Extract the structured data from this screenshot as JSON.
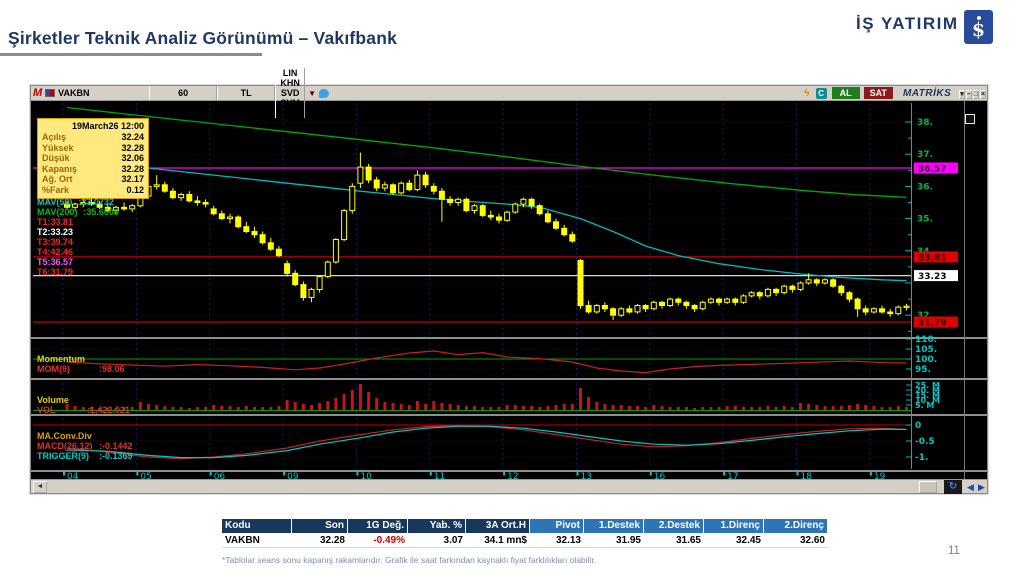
{
  "slide": {
    "title": "Şirketler Teknik Analiz Görünümü – Vakıfbank",
    "logo_text": "İŞ YATIRIM",
    "logo_symbol": "$",
    "page_number": "11",
    "footnote": "*Tablolar seans sonu kapanış rakamlarıdır. Grafik ile saat farkından kaynaklı fiyat farklılıkları olabilir."
  },
  "terminal": {
    "toolbar": {
      "m_logo": "M",
      "symbol": "VAKBN",
      "period": "60",
      "currency": "TL",
      "buttons": [
        "LIN",
        "KHN",
        "SVD",
        "SYM",
        "TMP"
      ],
      "caret": "▼",
      "bolt": "ϟ",
      "c_icon": "C",
      "al_label": "AL",
      "sat_label": "SAT",
      "brand": "MATRİKS",
      "window_buttons": [
        {
          "glyph": "▾",
          "name": "dropdown"
        },
        {
          "glyph": "–",
          "name": "minimize"
        },
        {
          "glyph": "□",
          "name": "maximize"
        },
        {
          "glyph": "×",
          "name": "close"
        }
      ]
    },
    "info_box": {
      "timestamp": "19March26 12:00",
      "rows": [
        {
          "label": "Açılış",
          "value": "32.24"
        },
        {
          "label": "Yüksek",
          "value": "32.28"
        },
        {
          "label": "Düşük",
          "value": "32.06"
        },
        {
          "label": "Kapanış",
          "value": "32.28"
        },
        {
          "label": "Ağ. Ort",
          "value": "32.17"
        },
        {
          "label": "%Fark",
          "value": "0.12"
        }
      ]
    },
    "legend": [
      {
        "label": "MAV(50)",
        "value": ":33.0732",
        "color": "#00cccc"
      },
      {
        "label": "MAV(200)",
        "value": ":35.6608",
        "color": "#00c000"
      },
      {
        "label": "T1:33.81",
        "value": "",
        "color": "#ff2020"
      },
      {
        "label": "T2:33.23",
        "value": "",
        "color": "#ffffff"
      },
      {
        "label": "T3:39.74",
        "value": "",
        "color": "#ff2020"
      },
      {
        "label": "T4:42.46",
        "value": "",
        "color": "#ff2020"
      },
      {
        "label": "T5:36.57",
        "value": "",
        "color": "#ff50ff"
      },
      {
        "label": "T6:31.79",
        "value": "",
        "color": "#ff2020"
      }
    ],
    "momentum": {
      "title": "Momentum",
      "series_label": "MOM(9)",
      "value": ":98.06"
    },
    "volume": {
      "title": "Volume",
      "series_label": "VOL",
      "value": ":1,422,021"
    },
    "macd": {
      "title": "MA.Conv.Div",
      "lines": [
        {
          "label": "MACD(26,12)",
          "value": ":-0.1442",
          "color": "#e03030"
        },
        {
          "label": "TRIGGER(9)",
          "value": ":-0.1369",
          "color": "#00cccc"
        }
      ]
    },
    "scrollbar": {
      "left_arrow": "◄",
      "refresh_icon": "↻",
      "back_icon": "◀",
      "fwd_icon": "▶"
    }
  },
  "chart_data": {
    "type": "candlestick",
    "symbol": "VAKBN",
    "interval_minutes": 60,
    "ylim": [
      31.3,
      38.6
    ],
    "dates": [
      "04",
      "05",
      "06",
      "09",
      "10",
      "11",
      "12",
      "13",
      "16",
      "17",
      "18",
      "19"
    ],
    "bars_per_day": 9,
    "candles": [
      [
        35.45,
        35.55,
        35.3,
        35.35
      ],
      [
        35.35,
        35.5,
        35.25,
        35.45
      ],
      [
        35.45,
        35.6,
        35.35,
        35.5
      ],
      [
        35.5,
        35.65,
        35.4,
        35.45
      ],
      [
        35.45,
        35.55,
        35.3,
        35.35
      ],
      [
        35.35,
        35.45,
        35.2,
        35.25
      ],
      [
        35.25,
        35.4,
        35.15,
        35.35
      ],
      [
        35.35,
        35.5,
        35.25,
        35.3
      ],
      [
        35.3,
        35.45,
        35.2,
        35.4
      ],
      [
        35.4,
        35.75,
        35.35,
        35.7
      ],
      [
        35.7,
        36.1,
        35.65,
        36.0
      ],
      [
        36.0,
        36.35,
        35.9,
        36.05
      ],
      [
        36.05,
        36.15,
        35.8,
        35.85
      ],
      [
        35.85,
        35.95,
        35.6,
        35.65
      ],
      [
        35.65,
        35.8,
        35.55,
        35.75
      ],
      [
        35.75,
        35.85,
        35.5,
        35.55
      ],
      [
        35.55,
        35.7,
        35.4,
        35.5
      ],
      [
        35.5,
        35.6,
        35.35,
        35.45
      ],
      [
        35.3,
        35.4,
        35.1,
        35.15
      ],
      [
        35.15,
        35.25,
        34.95,
        35.0
      ],
      [
        35.0,
        35.15,
        34.85,
        35.05
      ],
      [
        35.05,
        35.1,
        34.7,
        34.75
      ],
      [
        34.75,
        34.9,
        34.55,
        34.6
      ],
      [
        34.6,
        34.75,
        34.4,
        34.5
      ],
      [
        34.5,
        34.6,
        34.2,
        34.25
      ],
      [
        34.25,
        34.4,
        34.0,
        34.05
      ],
      [
        34.05,
        34.15,
        33.8,
        33.85
      ],
      [
        33.6,
        33.7,
        33.2,
        33.3
      ],
      [
        33.3,
        33.4,
        32.9,
        32.95
      ],
      [
        32.95,
        33.05,
        32.45,
        32.55
      ],
      [
        32.55,
        32.85,
        32.4,
        32.8
      ],
      [
        32.8,
        33.25,
        32.7,
        33.2
      ],
      [
        33.2,
        33.7,
        33.15,
        33.65
      ],
      [
        33.65,
        34.4,
        33.6,
        34.35
      ],
      [
        34.35,
        35.3,
        34.3,
        35.25
      ],
      [
        35.25,
        36.1,
        35.15,
        36.0
      ],
      [
        36.1,
        37.05,
        35.95,
        36.6
      ],
      [
        36.6,
        36.7,
        36.1,
        36.2
      ],
      [
        36.2,
        36.3,
        35.85,
        35.95
      ],
      [
        35.95,
        36.15,
        35.85,
        36.05
      ],
      [
        36.05,
        36.1,
        35.75,
        35.8
      ],
      [
        35.8,
        36.15,
        35.75,
        36.1
      ],
      [
        36.1,
        36.2,
        35.85,
        35.9
      ],
      [
        35.9,
        36.5,
        35.85,
        36.35
      ],
      [
        36.35,
        36.45,
        35.95,
        36.05
      ],
      [
        36.0,
        36.1,
        35.75,
        35.85
      ],
      [
        35.85,
        35.95,
        34.9,
        35.6
      ],
      [
        35.6,
        35.7,
        35.4,
        35.5
      ],
      [
        35.5,
        35.65,
        35.4,
        35.6
      ],
      [
        35.6,
        35.65,
        35.2,
        35.25
      ],
      [
        35.25,
        35.45,
        35.15,
        35.4
      ],
      [
        35.4,
        35.45,
        35.05,
        35.1
      ],
      [
        35.1,
        35.25,
        34.95,
        35.05
      ],
      [
        35.05,
        35.15,
        34.85,
        34.95
      ],
      [
        34.95,
        35.25,
        34.9,
        35.2
      ],
      [
        35.2,
        35.5,
        35.15,
        35.45
      ],
      [
        35.45,
        35.65,
        35.35,
        35.6
      ],
      [
        35.6,
        35.65,
        35.3,
        35.4
      ],
      [
        35.4,
        35.45,
        35.1,
        35.15
      ],
      [
        35.15,
        35.25,
        34.85,
        34.9
      ],
      [
        34.9,
        35.0,
        34.65,
        34.7
      ],
      [
        34.7,
        34.8,
        34.45,
        34.5
      ],
      [
        34.5,
        34.6,
        34.25,
        34.3
      ],
      [
        33.7,
        33.75,
        32.2,
        32.3
      ],
      [
        32.3,
        32.45,
        32.05,
        32.1
      ],
      [
        32.1,
        32.35,
        32.05,
        32.3
      ],
      [
        32.3,
        32.4,
        32.1,
        32.2
      ],
      [
        32.2,
        32.25,
        31.85,
        32.0
      ],
      [
        32.0,
        32.25,
        31.95,
        32.2
      ],
      [
        32.2,
        32.3,
        32.05,
        32.1
      ],
      [
        32.1,
        32.35,
        32.05,
        32.3
      ],
      [
        32.3,
        32.35,
        32.1,
        32.2
      ],
      [
        32.2,
        32.45,
        32.15,
        32.4
      ],
      [
        32.4,
        32.45,
        32.2,
        32.3
      ],
      [
        32.3,
        32.55,
        32.25,
        32.5
      ],
      [
        32.5,
        32.55,
        32.3,
        32.4
      ],
      [
        32.4,
        32.45,
        32.2,
        32.3
      ],
      [
        32.3,
        32.35,
        32.1,
        32.2
      ],
      [
        32.2,
        32.45,
        32.15,
        32.4
      ],
      [
        32.4,
        32.55,
        32.35,
        32.5
      ],
      [
        32.5,
        32.55,
        32.3,
        32.4
      ],
      [
        32.4,
        32.55,
        32.35,
        32.5
      ],
      [
        32.5,
        32.55,
        32.3,
        32.4
      ],
      [
        32.4,
        32.65,
        32.35,
        32.6
      ],
      [
        32.6,
        32.75,
        32.55,
        32.7
      ],
      [
        32.7,
        32.75,
        32.5,
        32.6
      ],
      [
        32.6,
        32.85,
        32.55,
        32.8
      ],
      [
        32.8,
        32.85,
        32.6,
        32.7
      ],
      [
        32.7,
        32.95,
        32.65,
        32.9
      ],
      [
        32.9,
        32.95,
        32.7,
        32.8
      ],
      [
        32.8,
        33.05,
        32.75,
        33.0
      ],
      [
        33.0,
        33.3,
        32.95,
        33.1
      ],
      [
        33.1,
        33.15,
        32.9,
        33.0
      ],
      [
        33.0,
        33.15,
        32.95,
        33.1
      ],
      [
        33.1,
        33.15,
        32.85,
        32.9
      ],
      [
        32.9,
        32.95,
        32.6,
        32.7
      ],
      [
        32.7,
        32.75,
        32.4,
        32.5
      ],
      [
        32.5,
        32.55,
        31.95,
        32.2
      ],
      [
        32.2,
        32.3,
        32.0,
        32.1
      ],
      [
        32.1,
        32.25,
        32.05,
        32.2
      ],
      [
        32.2,
        32.3,
        32.05,
        32.1
      ],
      [
        32.1,
        32.2,
        31.95,
        32.05
      ],
      [
        32.05,
        32.3,
        32.0,
        32.25
      ],
      [
        32.25,
        32.35,
        32.15,
        32.28
      ]
    ],
    "volumes_m": [
      6,
      4,
      3,
      3,
      2,
      2,
      2,
      3,
      3,
      8,
      6,
      5,
      4,
      3,
      3,
      2,
      3,
      3,
      5,
      4,
      4,
      3,
      4,
      3,
      3,
      3,
      4,
      10,
      8,
      6,
      5,
      7,
      9,
      12,
      16,
      20,
      26,
      18,
      12,
      8,
      7,
      6,
      5,
      9,
      6,
      9,
      7,
      6,
      5,
      4,
      4,
      3,
      3,
      3,
      5,
      5,
      4,
      4,
      3,
      4,
      5,
      6,
      6,
      22,
      13,
      8,
      6,
      5,
      5,
      4,
      4,
      3,
      5,
      4,
      3,
      3,
      3,
      2,
      3,
      3,
      3,
      4,
      4,
      3,
      3,
      3,
      4,
      3,
      4,
      3,
      7,
      6,
      5,
      4,
      4,
      4,
      5,
      6,
      5,
      4,
      3,
      3,
      4,
      3
    ],
    "ma50": [
      [
        0,
        36.85
      ],
      [
        9,
        36.6
      ],
      [
        18,
        36.35
      ],
      [
        27,
        36.1
      ],
      [
        36,
        35.85
      ],
      [
        45,
        35.62
      ],
      [
        50,
        35.52
      ],
      [
        54,
        35.45
      ],
      [
        58,
        35.35
      ],
      [
        63,
        35.0
      ],
      [
        67,
        34.6
      ],
      [
        71,
        34.15
      ],
      [
        75,
        33.85
      ],
      [
        80,
        33.6
      ],
      [
        85,
        33.42
      ],
      [
        90,
        33.28
      ],
      [
        95,
        33.17
      ],
      [
        100,
        33.1
      ],
      [
        103,
        33.07
      ]
    ],
    "ma200": [
      [
        0,
        38.45
      ],
      [
        9,
        38.2
      ],
      [
        18,
        37.95
      ],
      [
        27,
        37.7
      ],
      [
        36,
        37.45
      ],
      [
        45,
        37.2
      ],
      [
        54,
        36.92
      ],
      [
        63,
        36.62
      ],
      [
        72,
        36.35
      ],
      [
        81,
        36.1
      ],
      [
        90,
        35.88
      ],
      [
        97,
        35.74
      ],
      [
        103,
        35.66
      ]
    ],
    "momentum": [
      [
        0,
        98.5
      ],
      [
        4,
        97.6
      ],
      [
        8,
        97.0
      ],
      [
        12,
        96.4
      ],
      [
        16,
        97.2
      ],
      [
        20,
        96.6
      ],
      [
        24,
        95.8
      ],
      [
        28,
        94.6
      ],
      [
        31,
        95.5
      ],
      [
        34,
        97.5
      ],
      [
        38,
        100.5
      ],
      [
        42,
        103.0
      ],
      [
        45,
        104.0
      ],
      [
        48,
        102.2
      ],
      [
        51,
        103.2
      ],
      [
        54,
        101.0
      ],
      [
        58,
        100.2
      ],
      [
        62,
        98.5
      ],
      [
        65,
        95.5
      ],
      [
        68,
        94.0
      ],
      [
        71,
        93.2
      ],
      [
        74,
        95.0
      ],
      [
        77,
        96.2
      ],
      [
        80,
        96.8
      ],
      [
        84,
        97.3
      ],
      [
        88,
        97.8
      ],
      [
        92,
        98.4
      ],
      [
        96,
        99.0
      ],
      [
        99,
        98.4
      ],
      [
        101,
        98.1
      ],
      [
        103,
        98.06
      ]
    ],
    "macd": [
      [
        0,
        -0.72
      ],
      [
        5,
        -0.85
      ],
      [
        10,
        -1.0
      ],
      [
        14,
        -1.05
      ],
      [
        18,
        -1.0
      ],
      [
        22,
        -0.9
      ],
      [
        27,
        -0.72
      ],
      [
        31,
        -0.5
      ],
      [
        36,
        -0.3
      ],
      [
        40,
        -0.15
      ],
      [
        44,
        -0.05
      ],
      [
        48,
        -0.02
      ],
      [
        52,
        -0.05
      ],
      [
        56,
        -0.15
      ],
      [
        60,
        -0.3
      ],
      [
        64,
        -0.45
      ],
      [
        68,
        -0.6
      ],
      [
        72,
        -0.68
      ],
      [
        76,
        -0.65
      ],
      [
        80,
        -0.55
      ],
      [
        84,
        -0.42
      ],
      [
        88,
        -0.3
      ],
      [
        92,
        -0.2
      ],
      [
        96,
        -0.12
      ],
      [
        100,
        -0.1
      ],
      [
        103,
        -0.1442
      ]
    ],
    "trigger": [
      [
        0,
        -0.78
      ],
      [
        5,
        -0.82
      ],
      [
        10,
        -0.95
      ],
      [
        14,
        -1.02
      ],
      [
        18,
        -1.02
      ],
      [
        22,
        -0.95
      ],
      [
        27,
        -0.8
      ],
      [
        31,
        -0.6
      ],
      [
        36,
        -0.4
      ],
      [
        40,
        -0.22
      ],
      [
        44,
        -0.1
      ],
      [
        48,
        -0.04
      ],
      [
        52,
        -0.04
      ],
      [
        56,
        -0.1
      ],
      [
        60,
        -0.22
      ],
      [
        64,
        -0.36
      ],
      [
        68,
        -0.5
      ],
      [
        72,
        -0.6
      ],
      [
        76,
        -0.63
      ],
      [
        80,
        -0.58
      ],
      [
        84,
        -0.48
      ],
      [
        88,
        -0.37
      ],
      [
        92,
        -0.27
      ],
      [
        96,
        -0.18
      ],
      [
        100,
        -0.13
      ],
      [
        103,
        -0.1369
      ]
    ],
    "levels": [
      {
        "value": 36.57,
        "color": "#ff00ff"
      },
      {
        "value": 33.81,
        "color": "#c80000"
      },
      {
        "value": 33.23,
        "color": "#d8d8d8"
      },
      {
        "value": 31.79,
        "color": "#c80000"
      }
    ],
    "price_ticks": [
      [
        38,
        "38."
      ],
      [
        37,
        "37."
      ],
      [
        36,
        "36."
      ],
      [
        35,
        "35."
      ],
      [
        34,
        "34."
      ],
      [
        32,
        "32."
      ]
    ],
    "price_tags": [
      {
        "value": 36.57,
        "text": "36.57",
        "bg": "#ff00ff",
        "fg": "#3c003c"
      },
      {
        "value": 33.81,
        "text": "33.81",
        "bg": "#e00000",
        "fg": "#3c0000"
      },
      {
        "value": 33.23,
        "text": "33.23",
        "bg": "#ffffff",
        "fg": "#000000"
      },
      {
        "value": 31.79,
        "text": "31.79",
        "bg": "#e00000",
        "fg": "#3c0000"
      }
    ],
    "mom_ticks": [
      [
        110,
        "110."
      ],
      [
        105,
        "105."
      ],
      [
        100,
        "100."
      ],
      [
        95,
        "95."
      ]
    ],
    "vol_ticks": [
      [
        25,
        "25. M"
      ],
      [
        20,
        "20. M"
      ],
      [
        15,
        "15. M"
      ],
      [
        10,
        "10. M"
      ],
      [
        5,
        "5. M"
      ]
    ],
    "macd_ticks": [
      [
        0,
        "0"
      ],
      [
        -0.5,
        "-0.5"
      ],
      [
        -1,
        "-1."
      ]
    ]
  },
  "table": {
    "headers": [
      "Kodu",
      "Son",
      "1G Değ.",
      "Yab. %",
      "3A Ort.H",
      "Pivot",
      "1.Destek",
      "2.Destek",
      "1.Direnç",
      "2.Direnç"
    ],
    "row": [
      "VAKBN",
      "32.28",
      "-0.49%",
      "3.07",
      "34.1 mn$",
      "32.13",
      "31.95",
      "31.65",
      "32.45",
      "32.60"
    ],
    "header_bg_dark": "#17375d",
    "header_bg_light": "#2e75b6",
    "negative_color": "#c00000"
  }
}
